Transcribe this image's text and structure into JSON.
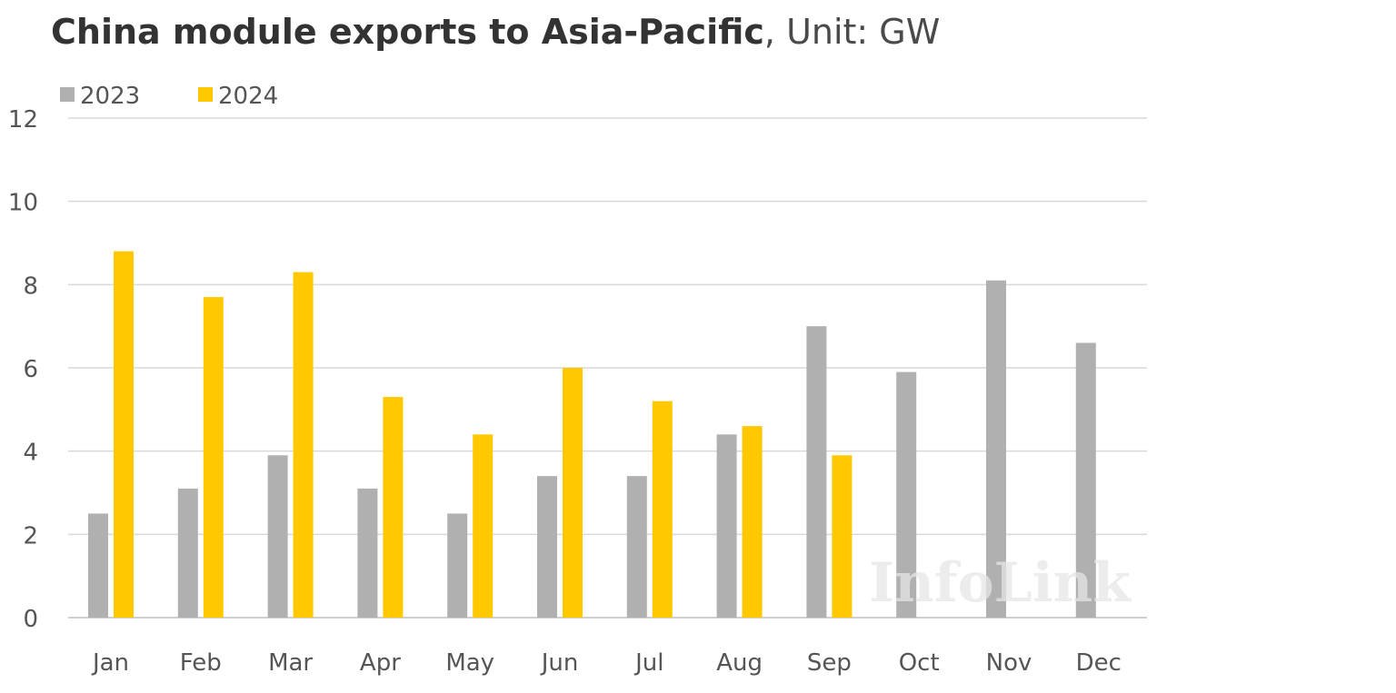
{
  "title": {
    "main": "China module exports to Asia-Pacific",
    "unit": ", Unit: GW"
  },
  "watermark": "InfoLink",
  "colors": {
    "series_2023": "#b0b0b0",
    "series_2024": "#ffc800",
    "grid": "#d9d9d9",
    "axis_text": "#555555"
  },
  "chart_data": {
    "type": "bar",
    "categories": [
      "Jan",
      "Feb",
      "Mar",
      "Apr",
      "May",
      "Jun",
      "Jul",
      "Aug",
      "Sep",
      "Oct",
      "Nov",
      "Dec"
    ],
    "series": [
      {
        "name": "2023",
        "values": [
          2.5,
          3.1,
          3.9,
          3.1,
          2.5,
          3.4,
          3.4,
          4.4,
          7.0,
          5.9,
          8.1,
          6.6
        ]
      },
      {
        "name": "2024",
        "values": [
          8.8,
          7.7,
          8.3,
          5.3,
          4.4,
          6.0,
          5.2,
          4.6,
          3.9,
          null,
          null,
          null
        ]
      }
    ],
    "title": "China module exports to Asia-Pacific, Unit: GW",
    "xlabel": "",
    "ylabel": "",
    "ylim": [
      0,
      12
    ],
    "yticks": [
      0,
      2,
      4,
      6,
      8,
      10,
      12
    ],
    "grid": true,
    "legend_position": "top-left"
  }
}
